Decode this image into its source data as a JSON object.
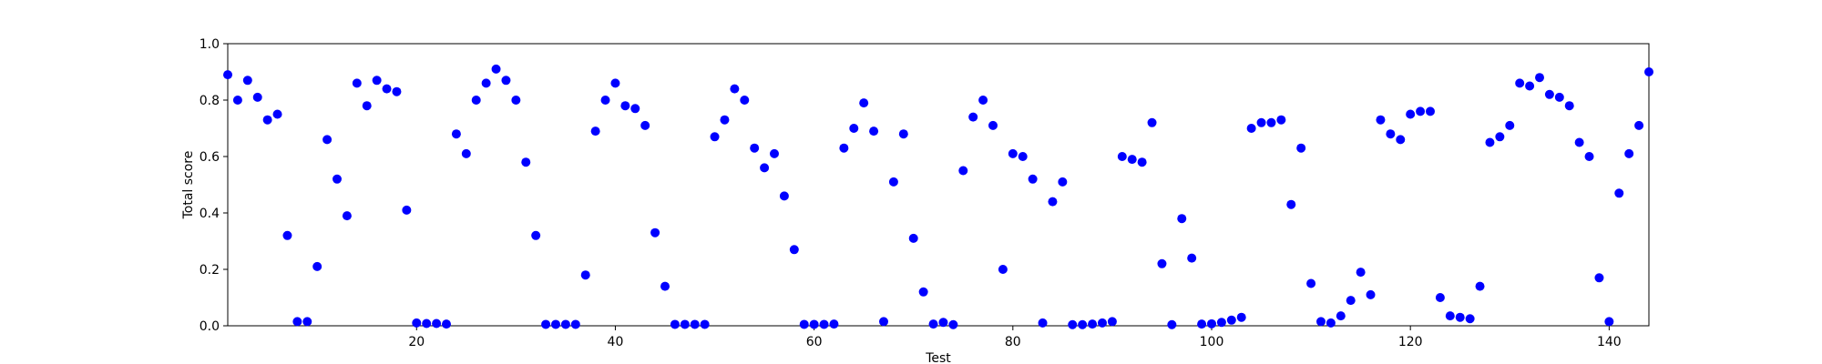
{
  "chart_data": {
    "type": "scatter",
    "xlabel": "Test",
    "ylabel": "Total score",
    "xlim": [
      1,
      144
    ],
    "ylim": [
      0,
      1
    ],
    "x_ticks": [
      20,
      40,
      60,
      80,
      100,
      120,
      140
    ],
    "y_ticks": [
      0.0,
      0.2,
      0.4,
      0.6,
      0.8,
      1.0
    ],
    "x_tick_labels": [
      "20",
      "40",
      "60",
      "80",
      "100",
      "120",
      "140"
    ],
    "y_tick_labels": [
      "0.0",
      "0.2",
      "0.4",
      "0.6",
      "0.8",
      "1.0"
    ],
    "grid": false,
    "marker_color": "#0000ff",
    "series": [
      {
        "x": [
          1,
          2,
          3,
          4,
          5,
          6,
          7,
          8,
          9,
          10,
          11,
          12,
          13,
          14,
          15,
          16,
          17,
          18,
          19,
          20,
          21,
          22,
          23,
          24,
          25,
          26,
          27,
          28,
          29,
          30,
          31,
          32,
          33,
          34,
          35,
          36,
          37,
          38,
          39,
          40,
          41,
          42,
          43,
          44,
          45,
          46,
          47,
          48,
          49,
          50,
          51,
          52,
          53,
          54,
          55,
          56,
          57,
          58,
          59,
          60,
          61,
          62,
          63,
          64,
          65,
          66,
          67,
          68,
          69,
          70,
          71,
          72,
          73,
          74,
          75,
          76,
          77,
          78,
          79,
          80,
          81,
          82,
          83,
          84,
          85,
          86,
          87,
          88,
          89,
          90,
          91,
          92,
          93,
          94,
          95,
          96,
          97,
          98,
          99,
          100,
          101,
          102,
          103,
          104,
          105,
          106,
          107,
          108,
          109,
          110,
          111,
          112,
          113,
          114,
          115,
          116,
          117,
          118,
          119,
          120,
          121,
          122,
          123,
          124,
          125,
          126,
          127,
          128,
          129,
          130,
          131,
          132,
          133,
          134,
          135,
          136,
          137,
          138,
          139,
          140,
          141,
          142,
          143,
          144
        ],
        "y": [
          0.89,
          0.8,
          0.87,
          0.81,
          0.73,
          0.75,
          0.32,
          0.015,
          0.015,
          0.21,
          0.66,
          0.52,
          0.39,
          0.86,
          0.78,
          0.87,
          0.84,
          0.83,
          0.41,
          0.01,
          0.008,
          0.008,
          0.006,
          0.68,
          0.61,
          0.8,
          0.86,
          0.91,
          0.87,
          0.8,
          0.58,
          0.32,
          0.005,
          0.005,
          0.005,
          0.005,
          0.18,
          0.69,
          0.8,
          0.86,
          0.78,
          0.77,
          0.71,
          0.33,
          0.14,
          0.005,
          0.005,
          0.005,
          0.005,
          0.67,
          0.73,
          0.84,
          0.8,
          0.63,
          0.56,
          0.61,
          0.46,
          0.27,
          0.005,
          0.005,
          0.005,
          0.006,
          0.63,
          0.7,
          0.79,
          0.69,
          0.015,
          0.51,
          0.68,
          0.31,
          0.12,
          0.006,
          0.012,
          0.004,
          0.55,
          0.74,
          0.8,
          0.71,
          0.2,
          0.61,
          0.6,
          0.52,
          0.01,
          0.44,
          0.51,
          0.004,
          0.004,
          0.006,
          0.01,
          0.015,
          0.6,
          0.59,
          0.58,
          0.72,
          0.22,
          0.004,
          0.38,
          0.24,
          0.006,
          0.007,
          0.012,
          0.02,
          0.03,
          0.7,
          0.72,
          0.72,
          0.73,
          0.43,
          0.63,
          0.15,
          0.015,
          0.01,
          0.035,
          0.09,
          0.19,
          0.11,
          0.73,
          0.68,
          0.66,
          0.75,
          0.76,
          0.76,
          0.1,
          0.035,
          0.03,
          0.025,
          0.14,
          0.65,
          0.67,
          0.71,
          0.86,
          0.85,
          0.88,
          0.82,
          0.81,
          0.78,
          0.65,
          0.6,
          0.17,
          0.015,
          0.47,
          0.61,
          0.71,
          0.9
        ]
      }
    ]
  }
}
